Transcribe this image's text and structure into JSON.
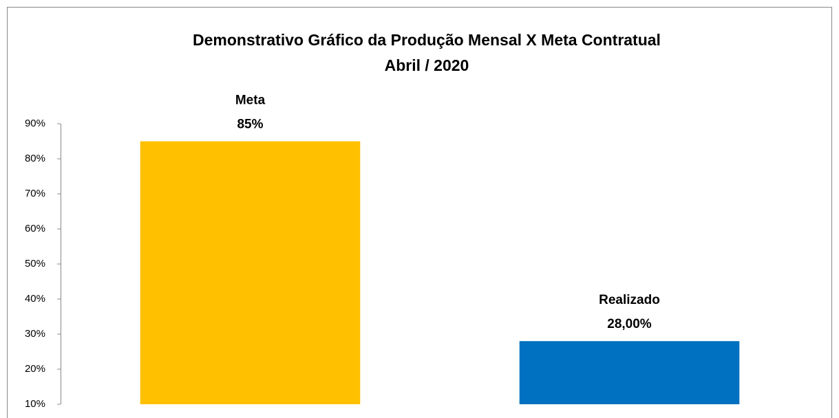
{
  "chart_data": {
    "type": "bar",
    "title": "Demonstrativo Gráfico da Produção Mensal X Meta Contratual",
    "subtitle": "Abril / 2020",
    "categories": [
      "Meta",
      "Realizado"
    ],
    "values": [
      85,
      28
    ],
    "value_labels": [
      "85%",
      "28,00%"
    ],
    "colors": [
      "#ffc000",
      "#0070c0"
    ],
    "ylim": [
      10,
      90
    ],
    "yticks": [
      {
        "value": 10,
        "label": "10%"
      },
      {
        "value": 20,
        "label": "20%"
      },
      {
        "value": 30,
        "label": "30%"
      },
      {
        "value": 40,
        "label": "40%"
      },
      {
        "value": 50,
        "label": "50%"
      },
      {
        "value": 60,
        "label": "60%"
      },
      {
        "value": 70,
        "label": "70%"
      },
      {
        "value": 80,
        "label": "80%"
      },
      {
        "value": 90,
        "label": "90%"
      }
    ],
    "grid": false
  }
}
